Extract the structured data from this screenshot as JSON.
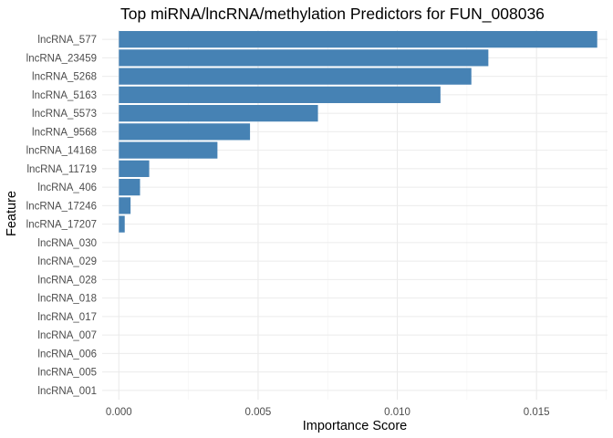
{
  "chart_data": {
    "type": "bar",
    "orientation": "horizontal",
    "title": "Top miRNA/lncRNA/methylation Predictors for FUN_008036",
    "xlabel": "Importance Score",
    "ylabel": "Feature",
    "xlim": [
      -0.0006,
      0.01755
    ],
    "xticks": [
      "0.000",
      "0.005",
      "0.010",
      "0.015"
    ],
    "xtick_values": [
      0,
      0.005,
      0.01,
      0.015
    ],
    "categories": [
      "lncRNA_577",
      "lncRNA_23459",
      "lncRNA_5268",
      "lncRNA_5163",
      "lncRNA_5573",
      "lncRNA_9568",
      "lncRNA_14168",
      "lncRNA_11719",
      "lncRNA_406",
      "lncRNA_17246",
      "lncRNA_17207",
      "lncRNA_030",
      "lncRNA_029",
      "lncRNA_028",
      "lncRNA_018",
      "lncRNA_017",
      "lncRNA_007",
      "lncRNA_006",
      "lncRNA_005",
      "lncRNA_001"
    ],
    "values": [
      0.01718,
      0.01327,
      0.01266,
      0.01155,
      0.00715,
      0.00471,
      0.00354,
      0.00109,
      0.00076,
      0.00042,
      0.00021,
      0,
      0,
      0,
      0,
      0,
      0,
      0,
      0,
      0
    ],
    "bar_color": "#4682B4",
    "grid": true,
    "legend": "none"
  }
}
